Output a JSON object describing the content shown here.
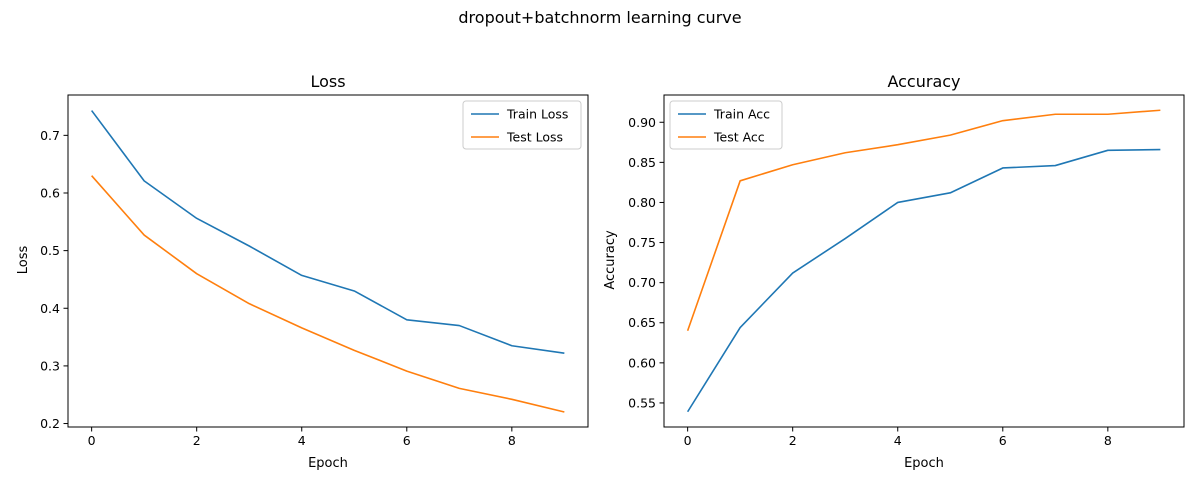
{
  "figure": {
    "suptitle": "dropout+batchnorm learning curve"
  },
  "colors": {
    "train": "#1f77b4",
    "test": "#ff7f0e",
    "axis": "#000000",
    "legend_border": "#cccccc"
  },
  "chart_data": [
    {
      "type": "line",
      "title": "Loss",
      "xlabel": "Epoch",
      "ylabel": "Loss",
      "x": [
        0,
        1,
        2,
        3,
        4,
        5,
        6,
        7,
        8,
        9
      ],
      "xlim": [
        -0.45,
        9.45
      ],
      "ylim": [
        0.194,
        0.77
      ],
      "xticks": [
        0,
        2,
        4,
        6,
        8
      ],
      "yticks": [
        0.2,
        0.3,
        0.4,
        0.5,
        0.6,
        0.7
      ],
      "ytick_labels": [
        "0.2",
        "0.3",
        "0.4",
        "0.5",
        "0.6",
        "0.7"
      ],
      "grid": false,
      "legend": "top-right",
      "series": [
        {
          "name": "Train Loss",
          "color": "#1f77b4",
          "values": [
            0.743,
            0.621,
            0.556,
            0.508,
            0.457,
            0.43,
            0.38,
            0.37,
            0.335,
            0.322
          ]
        },
        {
          "name": "Test Loss",
          "color": "#ff7f0e",
          "values": [
            0.63,
            0.527,
            0.46,
            0.408,
            0.366,
            0.327,
            0.291,
            0.261,
            0.242,
            0.22
          ]
        }
      ]
    },
    {
      "type": "line",
      "title": "Accuracy",
      "xlabel": "Epoch",
      "ylabel": "Accuracy",
      "x": [
        0,
        1,
        2,
        3,
        4,
        5,
        6,
        7,
        8,
        9
      ],
      "xlim": [
        -0.45,
        9.45
      ],
      "ylim": [
        0.52,
        0.934
      ],
      "xticks": [
        0,
        2,
        4,
        6,
        8
      ],
      "yticks": [
        0.55,
        0.6,
        0.65,
        0.7,
        0.75,
        0.8,
        0.85,
        0.9
      ],
      "ytick_labels": [
        "0.55",
        "0.60",
        "0.65",
        "0.70",
        "0.75",
        "0.80",
        "0.85",
        "0.90"
      ],
      "grid": false,
      "legend": "top-left",
      "series": [
        {
          "name": "Train Acc",
          "color": "#1f77b4",
          "values": [
            0.539,
            0.644,
            0.712,
            0.755,
            0.8,
            0.812,
            0.843,
            0.846,
            0.865,
            0.866
          ]
        },
        {
          "name": "Test Acc",
          "color": "#ff7f0e",
          "values": [
            0.64,
            0.827,
            0.847,
            0.862,
            0.872,
            0.884,
            0.902,
            0.91,
            0.91,
            0.915
          ]
        }
      ]
    }
  ]
}
